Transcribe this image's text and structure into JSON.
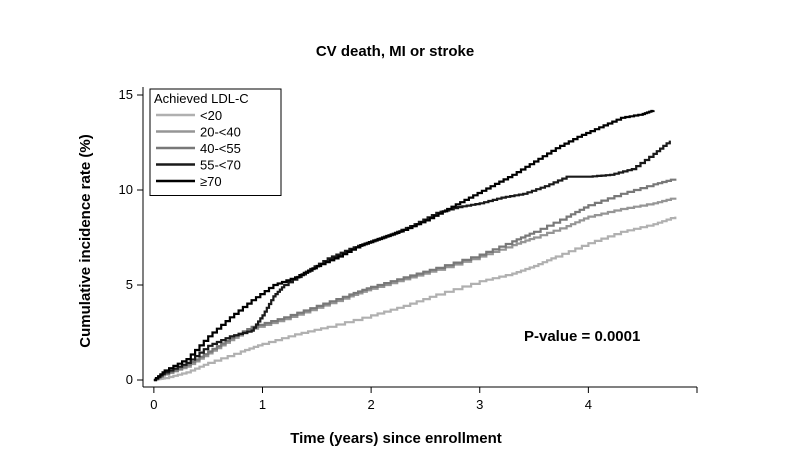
{
  "chart_data": {
    "type": "line",
    "title": "CV death, MI or stroke",
    "xlabel": "Time (years) since enrollment",
    "ylabel": "Cumulative incidence rate (%)",
    "xlim": [
      -0.1,
      5.0
    ],
    "ylim": [
      0,
      15
    ],
    "x_ticks": [
      0,
      1,
      2,
      3,
      4
    ],
    "y_ticks": [
      0,
      5,
      10,
      15
    ],
    "legend": {
      "title": "Achieved LDL-C",
      "placement": "top-left"
    },
    "annotation": "P-value = 0.0001",
    "series": [
      {
        "name": "<20",
        "color": "#b0b0b0",
        "points": [
          [
            0,
            0
          ],
          [
            0.1,
            0.1
          ],
          [
            0.3,
            0.4
          ],
          [
            0.5,
            0.9
          ],
          [
            0.8,
            1.5
          ],
          [
            1.0,
            1.9
          ],
          [
            1.3,
            2.4
          ],
          [
            1.6,
            2.8
          ],
          [
            2.0,
            3.4
          ],
          [
            2.3,
            3.9
          ],
          [
            2.6,
            4.5
          ],
          [
            3.0,
            5.2
          ],
          [
            3.3,
            5.6
          ],
          [
            3.5,
            6.0
          ],
          [
            3.7,
            6.5
          ],
          [
            4.0,
            7.2
          ],
          [
            4.3,
            7.8
          ],
          [
            4.6,
            8.2
          ],
          [
            4.8,
            8.6
          ]
        ]
      },
      {
        "name": "20-<40",
        "color": "#959595",
        "points": [
          [
            0,
            0
          ],
          [
            0.1,
            0.3
          ],
          [
            0.3,
            0.7
          ],
          [
            0.5,
            1.4
          ],
          [
            0.7,
            2.1
          ],
          [
            0.9,
            2.7
          ],
          [
            1.2,
            3.2
          ],
          [
            1.5,
            3.8
          ],
          [
            1.8,
            4.4
          ],
          [
            2.0,
            4.8
          ],
          [
            2.3,
            5.3
          ],
          [
            2.6,
            5.8
          ],
          [
            3.0,
            6.5
          ],
          [
            3.3,
            7.1
          ],
          [
            3.5,
            7.5
          ],
          [
            3.8,
            8.1
          ],
          [
            4.0,
            8.6
          ],
          [
            4.3,
            9.0
          ],
          [
            4.6,
            9.3
          ],
          [
            4.8,
            9.6
          ]
        ]
      },
      {
        "name": "40-<55",
        "color": "#787878",
        "points": [
          [
            0,
            0
          ],
          [
            0.1,
            0.3
          ],
          [
            0.3,
            0.8
          ],
          [
            0.5,
            1.5
          ],
          [
            0.7,
            2.2
          ],
          [
            0.9,
            2.8
          ],
          [
            1.2,
            3.3
          ],
          [
            1.5,
            3.9
          ],
          [
            1.8,
            4.5
          ],
          [
            2.0,
            4.9
          ],
          [
            2.3,
            5.4
          ],
          [
            2.6,
            5.9
          ],
          [
            3.0,
            6.6
          ],
          [
            3.3,
            7.3
          ],
          [
            3.5,
            7.8
          ],
          [
            3.8,
            8.6
          ],
          [
            4.0,
            9.2
          ],
          [
            4.3,
            9.8
          ],
          [
            4.6,
            10.3
          ],
          [
            4.8,
            10.6
          ]
        ]
      },
      {
        "name": "55-<70",
        "color": "#1a1a1a",
        "points": [
          [
            0,
            0
          ],
          [
            0.1,
            0.4
          ],
          [
            0.3,
            0.9
          ],
          [
            0.5,
            1.8
          ],
          [
            0.7,
            2.3
          ],
          [
            0.9,
            2.6
          ],
          [
            1.0,
            3.4
          ],
          [
            1.1,
            4.4
          ],
          [
            1.2,
            5.0
          ],
          [
            1.4,
            5.7
          ],
          [
            1.6,
            6.4
          ],
          [
            1.8,
            6.9
          ],
          [
            2.0,
            7.3
          ],
          [
            2.2,
            7.7
          ],
          [
            2.4,
            8.2
          ],
          [
            2.6,
            8.8
          ],
          [
            2.8,
            9.1
          ],
          [
            3.0,
            9.3
          ],
          [
            3.2,
            9.6
          ],
          [
            3.4,
            9.8
          ],
          [
            3.6,
            10.2
          ],
          [
            3.8,
            10.7
          ],
          [
            4.0,
            10.7
          ],
          [
            4.2,
            10.8
          ],
          [
            4.4,
            11.1
          ],
          [
            4.6,
            11.9
          ],
          [
            4.75,
            12.6
          ]
        ]
      },
      {
        "name": "≥70",
        "color": "#000000",
        "points": [
          [
            0,
            0
          ],
          [
            0.1,
            0.5
          ],
          [
            0.3,
            1.1
          ],
          [
            0.5,
            2.3
          ],
          [
            0.7,
            3.3
          ],
          [
            0.9,
            4.2
          ],
          [
            1.1,
            5.0
          ],
          [
            1.3,
            5.4
          ],
          [
            1.5,
            6.0
          ],
          [
            1.7,
            6.5
          ],
          [
            1.9,
            7.1
          ],
          [
            2.1,
            7.5
          ],
          [
            2.3,
            7.9
          ],
          [
            2.5,
            8.4
          ],
          [
            2.7,
            9.0
          ],
          [
            2.9,
            9.6
          ],
          [
            3.1,
            10.2
          ],
          [
            3.3,
            10.8
          ],
          [
            3.5,
            11.5
          ],
          [
            3.7,
            12.2
          ],
          [
            3.9,
            12.8
          ],
          [
            4.1,
            13.3
          ],
          [
            4.3,
            13.8
          ],
          [
            4.5,
            14.0
          ],
          [
            4.6,
            14.2
          ]
        ]
      }
    ]
  }
}
